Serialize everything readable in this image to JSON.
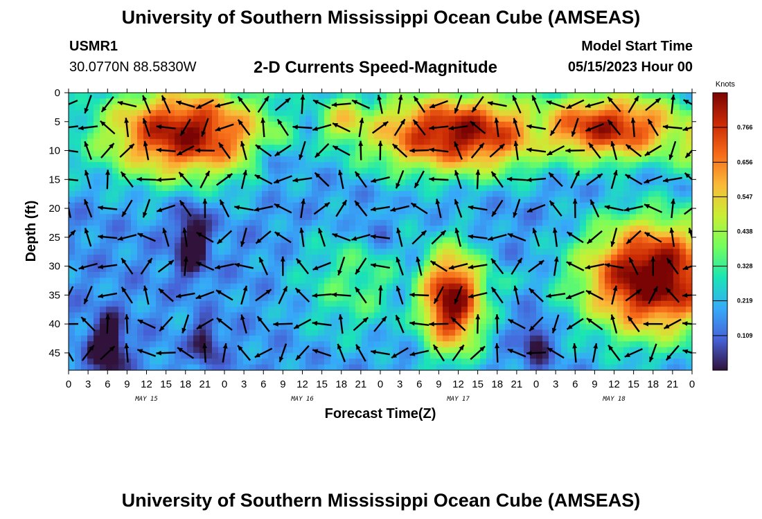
{
  "header": {
    "title": "University of Southern Mississippi Ocean Cube (AMSEAS)",
    "station_id": "USMR1",
    "station_coords": "30.0770N  88.5830W",
    "plot_title": "2-D Currents Speed-Magnitude",
    "model_label": "Model Start Time",
    "model_time": "05/15/2023 Hour 00"
  },
  "footer": {
    "title": "University of Southern Mississippi Ocean Cube (AMSEAS)"
  },
  "colors": {
    "colormap": [
      "#30123b",
      "#4662d7",
      "#36aaf9",
      "#1ae4b6",
      "#72fe5e",
      "#c8ef34",
      "#faba39",
      "#f66b19",
      "#ca2a04",
      "#7a0403"
    ]
  },
  "chart_data": {
    "type": "heatmap",
    "title": "2-D Currents Speed-Magnitude",
    "xlabel": "Forecast Time(Z)",
    "ylabel": "Depth (ft)",
    "x_range_hours": [
      0,
      96
    ],
    "ylim": [
      0,
      48
    ],
    "y_inverted": true,
    "x_ticks": [
      "0",
      "3",
      "6",
      "9",
      "12",
      "15",
      "18",
      "21",
      "0",
      "3",
      "6",
      "9",
      "12",
      "15",
      "18",
      "21",
      "0",
      "3",
      "6",
      "9",
      "12",
      "15",
      "18",
      "21",
      "0",
      "3",
      "6",
      "9",
      "12",
      "15",
      "18",
      "21",
      "0"
    ],
    "y_ticks": [
      0,
      5,
      10,
      15,
      20,
      25,
      30,
      35,
      40,
      45
    ],
    "day_labels": [
      "MAY 15",
      "MAY 16",
      "MAY 17",
      "MAY 18"
    ],
    "colorbar": {
      "label": "Knots",
      "ticks": [
        "0.766",
        "0.656",
        "0.547",
        "0.438",
        "0.328",
        "0.219",
        "0.109"
      ],
      "range": [
        0,
        0.875
      ]
    },
    "speed_blobs": [
      {
        "t": 18,
        "d": 7,
        "st": 13,
        "sd": 8,
        "v": 0.85
      },
      {
        "t": 28,
        "d": 2,
        "st": 8,
        "sd": 7,
        "v": 0.35
      },
      {
        "t": 43,
        "d": 5,
        "st": 5,
        "sd": 5,
        "v": 0.55
      },
      {
        "t": 60,
        "d": 7,
        "st": 15,
        "sd": 7,
        "v": 0.85
      },
      {
        "t": 83,
        "d": 6,
        "st": 13,
        "sd": 6,
        "v": 0.8
      },
      {
        "t": 96,
        "d": 8,
        "st": 4,
        "sd": 7,
        "v": 0.5
      },
      {
        "t": 0,
        "d": 10,
        "st": 3,
        "sd": 6,
        "v": 0.3
      },
      {
        "t": 59,
        "d": 36,
        "st": 5,
        "sd": 9,
        "v": 0.9
      },
      {
        "t": 66,
        "d": 33,
        "st": 3,
        "sd": 3,
        "v": 0.35
      },
      {
        "t": 90,
        "d": 32,
        "st": 11,
        "sd": 10,
        "v": 0.95
      },
      {
        "t": 44,
        "d": 33,
        "st": 9,
        "sd": 10,
        "v": 0.35
      },
      {
        "t": 50,
        "d": 22,
        "st": 4,
        "sd": 4,
        "v": 0.3
      },
      {
        "t": 20,
        "d": 36,
        "st": 4,
        "sd": 8,
        "v": 0.2
      },
      {
        "t": 30,
        "d": 38,
        "st": 4,
        "sd": 7,
        "v": 0.18
      },
      {
        "t": 74,
        "d": 40,
        "st": 4,
        "sd": 5,
        "v": 0.15
      },
      {
        "t": 92,
        "d": 45,
        "st": 4,
        "sd": 4,
        "v": 0.2
      },
      {
        "t": 2,
        "d": 36,
        "st": 5,
        "sd": 8,
        "v": 0.05
      },
      {
        "t": 37,
        "d": 30,
        "st": 5,
        "sd": 10,
        "v": 0.12
      }
    ],
    "speed_lows": [
      {
        "t": 6,
        "d": 44,
        "st": 2.5,
        "sd": 5,
        "v": 0.3
      },
      {
        "t": 19,
        "d": 26,
        "st": 2.5,
        "sd": 7,
        "v": 0.25
      },
      {
        "t": 21,
        "d": 43,
        "st": 2,
        "sd": 4,
        "v": 0.2
      },
      {
        "t": 31,
        "d": 12,
        "st": 2,
        "sd": 3,
        "v": 0.2
      },
      {
        "t": 48,
        "d": 23,
        "st": 3,
        "sd": 3,
        "v": 0.15
      },
      {
        "t": 72,
        "d": 43,
        "st": 2,
        "sd": 4,
        "v": 0.2
      }
    ],
    "speed_baseline": 0.16,
    "arrow_field": {
      "time_step_hours": 3,
      "depths": [
        2,
        6,
        10,
        15,
        20,
        25,
        30,
        35,
        40,
        45
      ],
      "base_angle_deg": 145
    }
  }
}
